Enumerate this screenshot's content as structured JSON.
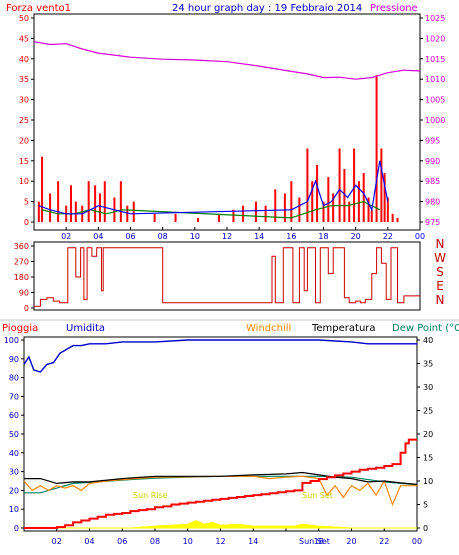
{
  "header": {
    "left_label": "Forza vento1",
    "title": "24 hour graph day : 19 Febbraio 2014",
    "right_label": "Pressione"
  },
  "colors": {
    "frame": "#000000",
    "wind": "#ff0000",
    "gust_blue": "#0000ff",
    "gust_green": "#008000",
    "pressure": "#d800d8",
    "direction": "#cc0000",
    "dir_labels": "#c00000",
    "rain": "#ff0000",
    "rain_label": "#ff0000",
    "humidity": "#0000cc",
    "windchill": "#ff8800",
    "temperature": "#000000",
    "dewpoint": "#008060",
    "solar": "#ffff00",
    "sun_text": "#cccc00"
  },
  "chart_data": [
    {
      "type": "line",
      "name": "wind-pressure",
      "title": "24 hour graph day : 19 Febbraio 2014",
      "ylabel_left": "Forza vento1",
      "ylabel_right": "Pressione",
      "x_ticks": [
        "02",
        "04",
        "06",
        "08",
        "10",
        "12",
        "14",
        "16",
        "18",
        "20",
        "22",
        "00"
      ],
      "yleft_ticks": [
        0,
        5,
        10,
        15,
        20,
        25,
        30,
        35,
        40,
        45,
        50
      ],
      "yright_ticks": [
        975,
        980,
        985,
        990,
        995,
        1000,
        1005,
        1010,
        1015,
        1020,
        1025
      ],
      "ylim_left": [
        0,
        50
      ],
      "ylim_right": [
        975,
        1025
      ],
      "pressure": {
        "x": [
          0,
          1,
          2,
          3,
          4,
          5,
          6,
          8,
          10,
          12,
          14,
          16,
          17,
          18,
          19,
          20,
          21,
          22,
          23,
          24
        ],
        "y": [
          1019.2,
          1018.5,
          1018.7,
          1017.4,
          1016.4,
          1015.9,
          1015.4,
          1014.9,
          1014.7,
          1014.3,
          1013.2,
          1011.9,
          1011.3,
          1010.4,
          1010.5,
          1010.0,
          1010.4,
          1011.6,
          1012.2,
          1012.0
        ]
      },
      "wind_gust": {
        "x": [
          0.3,
          0.5,
          1,
          1.5,
          2,
          2.3,
          2.6,
          3,
          3.4,
          3.8,
          4.1,
          4.4,
          5,
          5.4,
          5.8,
          6.2,
          7.5,
          8.8,
          10.2,
          11.5,
          12.4,
          13,
          13.8,
          14.4,
          15,
          15.6,
          16,
          16.5,
          17,
          17.3,
          17.6,
          18,
          18.3,
          18.6,
          19,
          19.3,
          19.6,
          19.9,
          20.2,
          20.5,
          20.8,
          21,
          21.3,
          21.6,
          21.8,
          22,
          22.3,
          22.6
        ],
        "y": [
          5,
          16,
          7,
          10,
          4,
          9,
          5,
          4,
          10,
          9,
          7,
          10,
          6,
          10,
          4,
          5,
          2,
          2,
          1,
          2,
          3,
          4,
          5,
          4,
          8,
          7,
          10,
          6,
          18,
          10,
          14,
          5,
          11,
          7,
          18,
          13,
          5,
          18,
          10,
          12,
          6,
          3,
          36,
          18,
          12,
          6,
          2,
          1
        ]
      },
      "wind_avg": {
        "x": [
          0.3,
          1,
          2,
          3,
          4,
          5,
          6,
          16,
          17,
          17.5,
          18,
          18.5,
          19,
          19.5,
          20,
          20.5,
          21,
          21.5,
          22
        ],
        "y": [
          4,
          3,
          2,
          2,
          4,
          3,
          2,
          3,
          5,
          10,
          4,
          5,
          8,
          6,
          9,
          7,
          3,
          15,
          5
        ]
      },
      "wind_green": {
        "x": [
          0.5,
          1.5,
          2.5,
          3.5,
          4.5,
          5.5,
          16,
          17.5,
          18.5,
          19.5,
          20.5,
          21.5
        ],
        "y": [
          3,
          2,
          2,
          3,
          2,
          3,
          1,
          3,
          4,
          4,
          5,
          3
        ]
      }
    },
    {
      "type": "line",
      "name": "wind-direction",
      "ylabel_left_ticks": [
        0,
        90,
        180,
        270,
        360
      ],
      "ylabel_right": [
        "N",
        "W",
        "S",
        "E",
        "N"
      ],
      "ylim": [
        0,
        360
      ],
      "x_ticks": [
        "02",
        "04",
        "06",
        "08",
        "10",
        "12",
        "14",
        "16",
        "18",
        "20",
        "22",
        "00"
      ],
      "x": [
        0,
        0.4,
        0.8,
        1.2,
        1.6,
        2,
        2.1,
        2.3,
        2.6,
        2.9,
        3.1,
        3.3,
        3.6,
        3.9,
        4.2,
        4.3,
        4.5,
        4.8,
        5.2,
        5.5,
        5.8,
        6.0,
        6.2,
        6.5,
        6.9,
        7.3,
        7.6,
        8.0,
        9.0,
        10.0,
        11.0,
        12.0,
        13.0,
        14.0,
        14.5,
        14.8,
        15.0,
        15.5,
        16.0,
        16.1,
        16.5,
        16.8,
        17.0,
        17.2,
        17.5,
        17.8,
        18.0,
        18.3,
        18.6,
        19.0,
        19.3,
        19.6,
        20.0,
        20.3,
        20.6,
        21.0,
        21.3,
        21.6,
        21.9,
        22.2,
        22.6,
        23.0,
        23.5,
        24.0
      ],
      "y": [
        10,
        50,
        60,
        40,
        30,
        30,
        350,
        350,
        180,
        350,
        50,
        350,
        300,
        350,
        100,
        350,
        350,
        350,
        350,
        350,
        350,
        350,
        350,
        350,
        350,
        350,
        350,
        30,
        30,
        30,
        30,
        30,
        30,
        30,
        30,
        300,
        30,
        350,
        350,
        30,
        350,
        100,
        350,
        350,
        30,
        350,
        350,
        200,
        350,
        350,
        60,
        30,
        40,
        30,
        50,
        200,
        350,
        260,
        50,
        350,
        30,
        70,
        70,
        70
      ]
    },
    {
      "type": "line",
      "name": "rain-humidity-temperature",
      "yleft_ticks": [
        0,
        10,
        20,
        30,
        40,
        50,
        60,
        70,
        80,
        90,
        100
      ],
      "yright_ticks": [
        0,
        5,
        10,
        15,
        20,
        25,
        30,
        35,
        40
      ],
      "ylim_left": [
        0,
        100
      ],
      "ylim_right": [
        0,
        40
      ],
      "x_ticks": [
        "02",
        "04",
        "06",
        "08",
        "10",
        "12",
        "14",
        "16",
        "18",
        "20",
        "22",
        "00"
      ],
      "legend": [
        "Pioggia",
        "Umidita",
        "Windchill",
        "Temperatura",
        "Dew Point (°C"
      ],
      "annotations": [
        "Sun Rise",
        "Sun Set",
        "Sun Set"
      ],
      "humidity": {
        "x": [
          0,
          0.3,
          0.6,
          1,
          1.4,
          1.8,
          2.2,
          2.6,
          3,
          3.5,
          4,
          5,
          6,
          8,
          10,
          12,
          14,
          16,
          18,
          20,
          21,
          22,
          23,
          24
        ],
        "y": [
          87,
          91,
          84,
          83,
          87,
          88,
          93,
          95,
          97,
          97,
          98,
          98,
          99,
          99,
          100,
          100,
          100,
          100,
          100,
          99,
          98,
          98,
          98,
          98
        ]
      },
      "rain": {
        "x": [
          0,
          2,
          2.5,
          3,
          3.5,
          4,
          4.5,
          5,
          5.5,
          6,
          6.5,
          7,
          7.5,
          8,
          8.5,
          9,
          9.5,
          10,
          10.5,
          11,
          11.5,
          12,
          12.5,
          13,
          13.5,
          14,
          14.5,
          15,
          15.5,
          16,
          16.5,
          17,
          17.5,
          18,
          18.5,
          19,
          19.5,
          20,
          20.5,
          21,
          21.5,
          22,
          22.5,
          23,
          23.3,
          23.5,
          24
        ],
        "y": [
          0,
          0.5,
          1.5,
          3,
          4,
          5,
          6,
          7,
          7.5,
          8,
          9,
          9.5,
          10,
          11,
          11.5,
          12.5,
          13,
          13.5,
          14,
          14.5,
          15,
          15.5,
          16,
          16.5,
          17,
          17.5,
          18,
          18.5,
          19,
          19.5,
          20,
          24,
          25,
          26,
          27,
          28,
          29,
          30,
          31,
          31.5,
          32,
          33,
          34,
          40,
          45,
          47,
          47
        ]
      },
      "temperature": {
        "x": [
          0,
          1,
          2,
          3,
          4,
          6,
          8,
          10,
          12,
          14,
          16,
          17,
          18,
          19,
          20,
          21,
          22,
          23,
          24
        ],
        "y": [
          10.5,
          10.5,
          9.5,
          9.8,
          9.8,
          10.5,
          11,
          11,
          11,
          11.3,
          11.5,
          11.8,
          11.3,
          10.8,
          10.5,
          9.8,
          10,
          9.6,
          9.3
        ]
      },
      "dewpoint": {
        "x": [
          0,
          1,
          2,
          3,
          4,
          6,
          8,
          10,
          12,
          14,
          16,
          18,
          20,
          22,
          24
        ],
        "y": [
          7.5,
          7.5,
          8.5,
          9.5,
          9.7,
          10.2,
          10.6,
          10.8,
          11,
          11,
          11,
          11,
          10.8,
          9.8,
          9.2
        ]
      },
      "windchill": {
        "x": [
          0,
          0.5,
          1,
          1.5,
          2,
          2.5,
          3,
          3.5,
          4,
          5,
          6,
          8,
          10,
          12,
          14,
          15,
          16,
          17,
          18,
          18.5,
          19,
          19.5,
          20,
          20.5,
          21,
          21.5,
          22,
          22.5,
          23,
          24
        ],
        "y": [
          10,
          8,
          9,
          8,
          9,
          8.5,
          9,
          8,
          9.5,
          10,
          10.3,
          10.8,
          10.9,
          11,
          11,
          10.5,
          10.8,
          11,
          10.5,
          7,
          9,
          6.5,
          9,
          8,
          9.5,
          7,
          10,
          5,
          9,
          9
        ]
      },
      "solar": {
        "x": [
          0,
          6.5,
          8,
          10,
          10.5,
          11,
          11.5,
          12,
          13,
          14,
          16,
          16.5,
          17,
          18,
          20,
          24
        ],
        "y": [
          0,
          0,
          1,
          2,
          4,
          2,
          3,
          1.5,
          2,
          1,
          1,
          1,
          2,
          1,
          0,
          0
        ]
      }
    }
  ]
}
